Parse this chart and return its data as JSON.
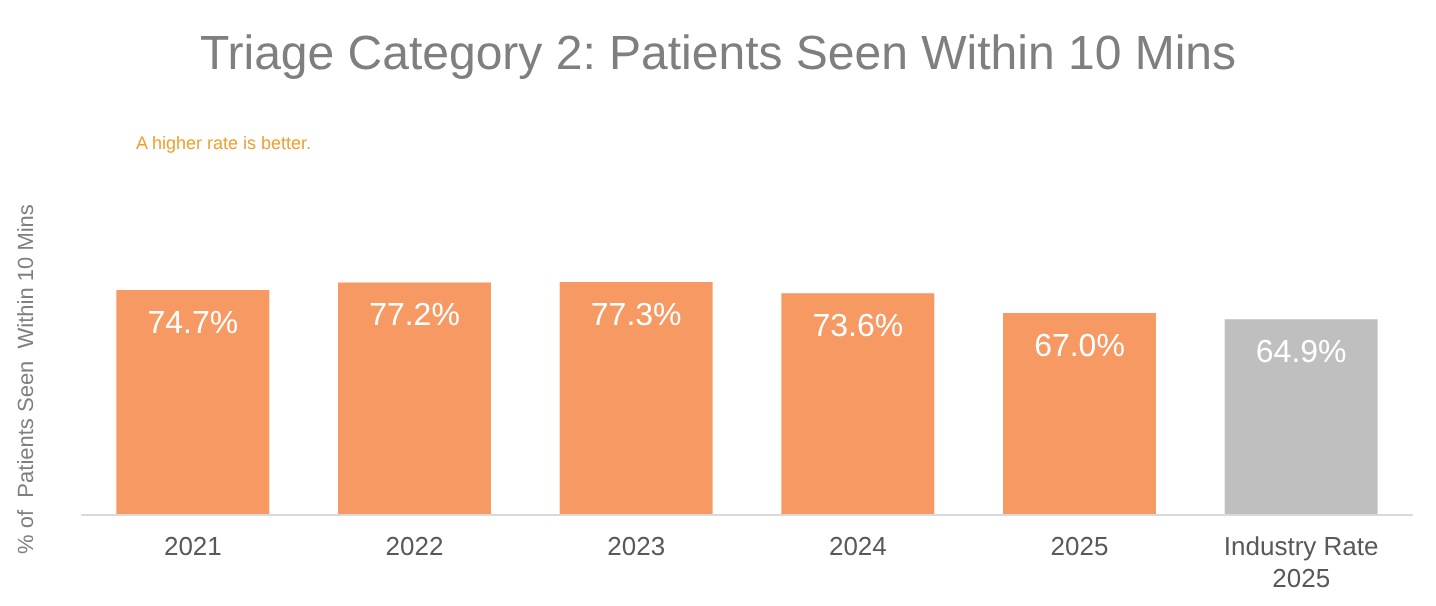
{
  "chart_data": {
    "type": "bar",
    "title": "Triage Category 2: Patients Seen Within 10 Mins",
    "ylabel": "% of  Patients Seen  Within 10 Mins",
    "annotations": [
      "A higher rate is better."
    ],
    "categories": [
      "2021",
      "2022",
      "2023",
      "2024",
      "2025",
      "Industry Rate\n2025"
    ],
    "values": [
      74.7,
      77.2,
      77.3,
      73.6,
      67.0,
      64.9
    ],
    "value_labels": [
      "74.7%",
      "77.2%",
      "77.3%",
      "73.6%",
      "67.0%",
      "64.9%"
    ],
    "colors": [
      "#f79963",
      "#f79963",
      "#f79963",
      "#f79963",
      "#f79963",
      "#bfbfbf"
    ],
    "tick_labels": "x"
  }
}
